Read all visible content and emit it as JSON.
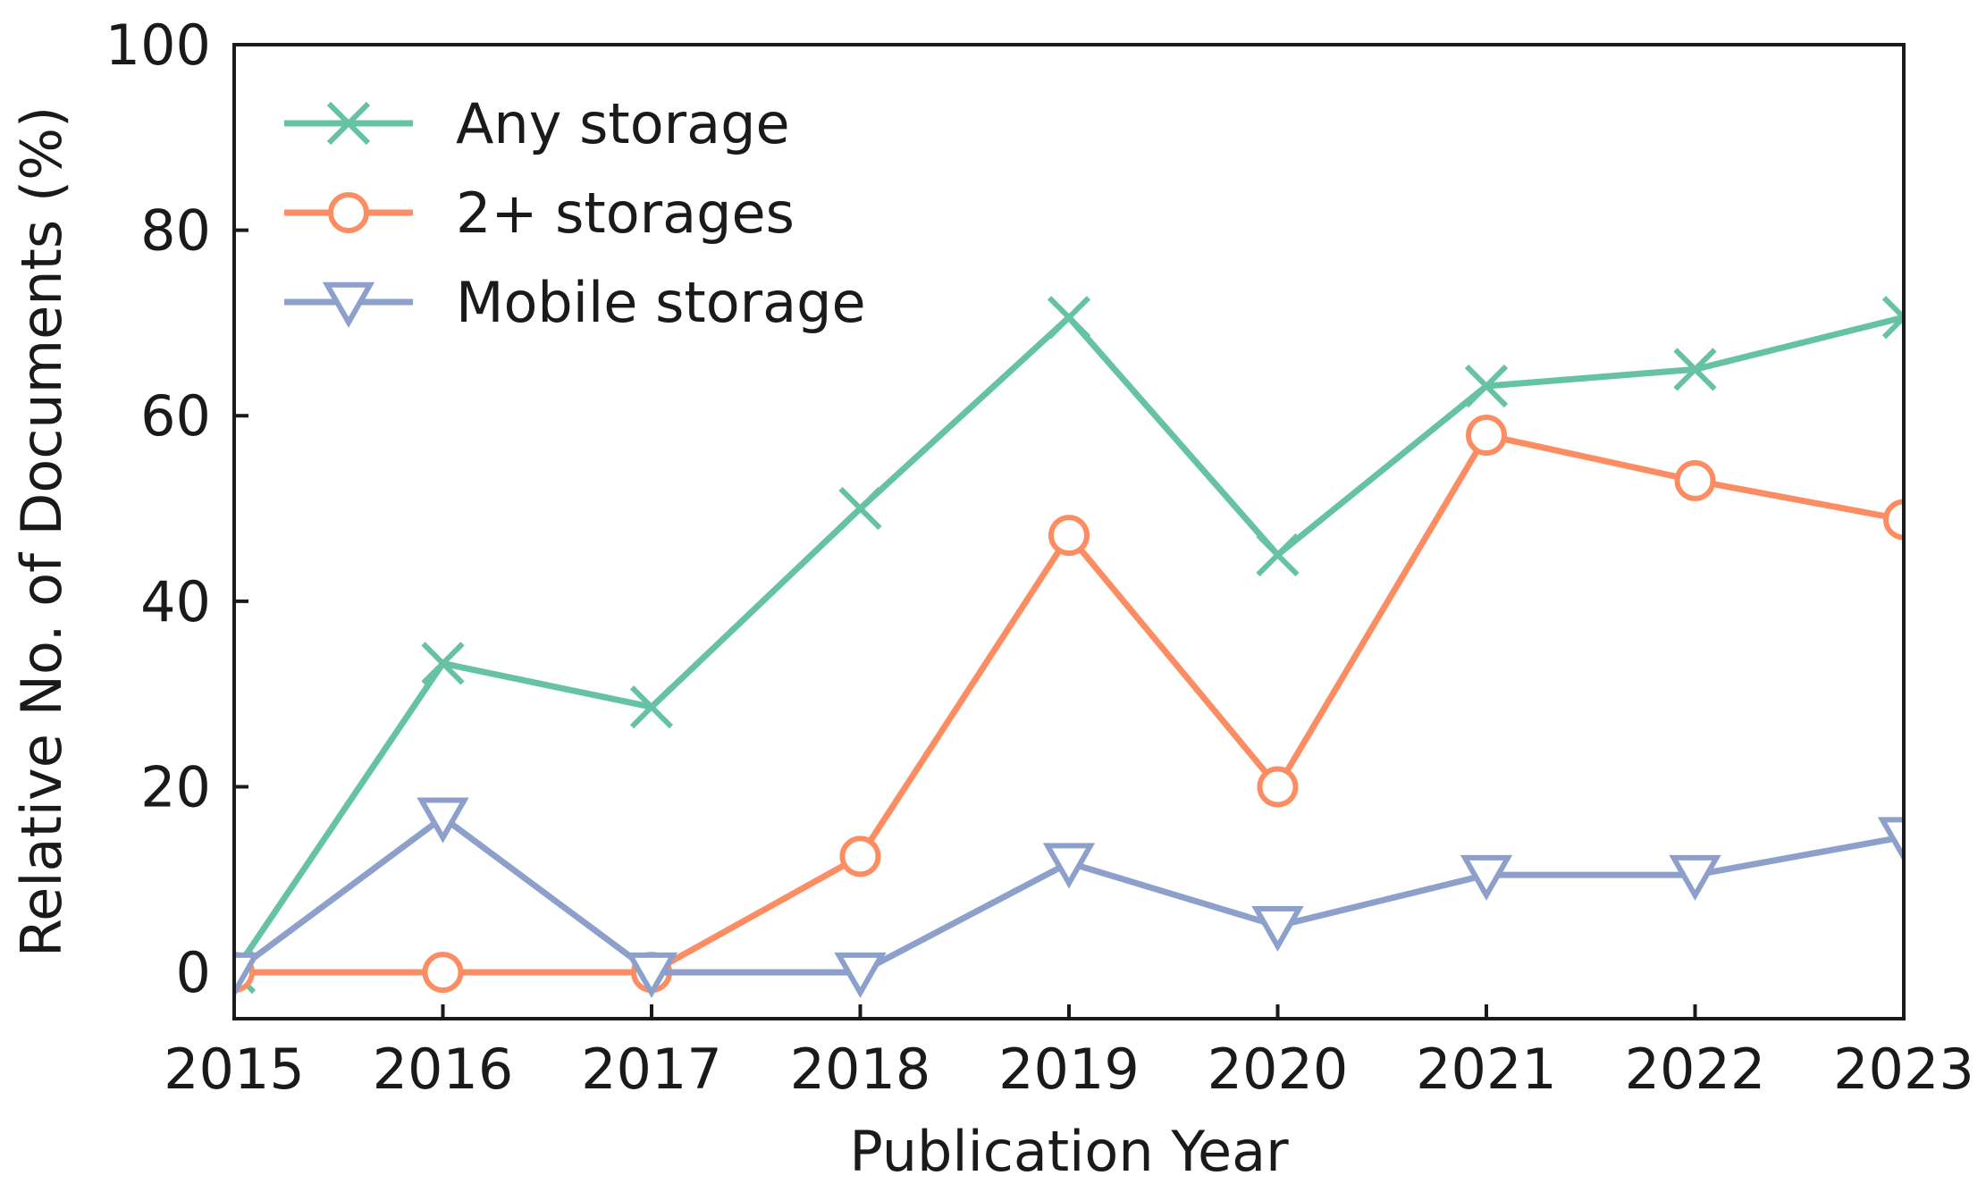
{
  "chart_data": {
    "type": "line",
    "title": "",
    "xlabel": "Publication Year",
    "ylabel": "Relative No. of Documents (%)",
    "x": [
      2015,
      2016,
      2017,
      2018,
      2019,
      2020,
      2021,
      2022,
      2023
    ],
    "x_tick_labels": [
      "2015",
      "2016",
      "2017",
      "2018",
      "2019",
      "2020",
      "2021",
      "2022",
      "2023"
    ],
    "xlim": [
      2015,
      2023
    ],
    "y_ticks": [
      0,
      20,
      40,
      60,
      80,
      100
    ],
    "y_tick_labels": [
      "0",
      "20",
      "40",
      "60",
      "80",
      "100"
    ],
    "ylim": [
      -5,
      100
    ],
    "grid": false,
    "legend_position": "top-left",
    "series": [
      {
        "name": "Any storage",
        "color": "#66c2a5",
        "marker": "x",
        "values": [
          0,
          33.3,
          28.6,
          50,
          70.6,
          45,
          63.2,
          65,
          70.6
        ]
      },
      {
        "name": "2+ storages",
        "color": "#fc8d62",
        "marker": "circle",
        "values": [
          0,
          0,
          0,
          12.5,
          47.1,
          20,
          57.9,
          53,
          48.8
        ]
      },
      {
        "name": "Mobile storage",
        "color": "#8da0cb",
        "marker": "triangle-down",
        "values": [
          0,
          16.7,
          0,
          0,
          11.8,
          5,
          10.5,
          10.5,
          14.6
        ]
      }
    ]
  }
}
